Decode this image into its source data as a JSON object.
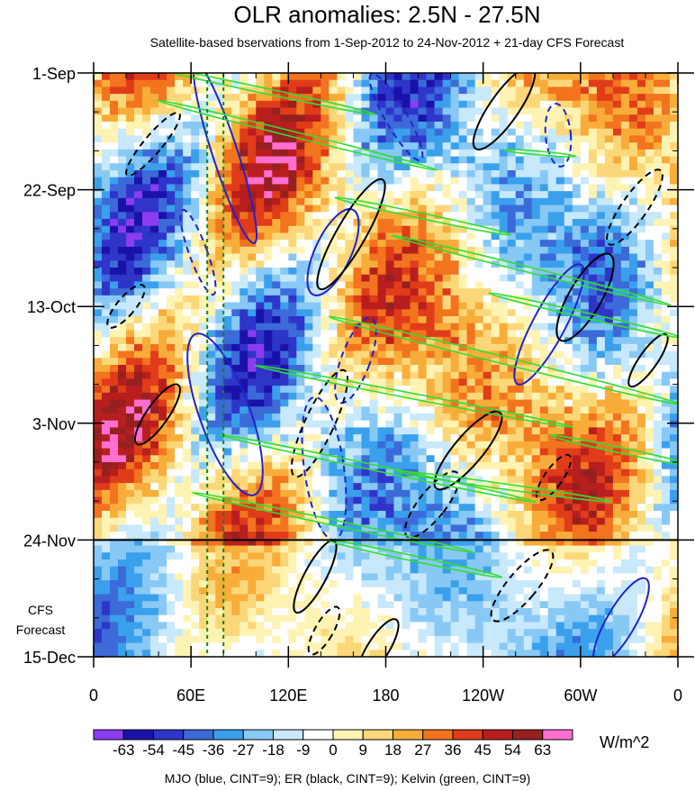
{
  "chart_data": {
    "type": "heatmap",
    "title": "OLR anomalies: 2.5N - 27.5N",
    "subtitle": "Satellite-based bservations from 1-Sep-2012 to 24-Nov-2012 + 21-day CFS Forecast",
    "x_ticks": [
      "0",
      "60E",
      "120E",
      "180",
      "120W",
      "60W",
      "0"
    ],
    "x_tick_longitudes": [
      0,
      60,
      120,
      180,
      240,
      300,
      360
    ],
    "y_ticks": [
      "1-Sep",
      "22-Sep",
      "13-Oct",
      "3-Nov",
      "24-Nov",
      "15-Dec"
    ],
    "y_tick_days": [
      0,
      21,
      42,
      63,
      84,
      105
    ],
    "observation_end_label": "24-Nov",
    "forecast_label": "CFS Forecast",
    "colorbar": {
      "levels": [
        "-63",
        "-54",
        "-45",
        "-36",
        "-27",
        "-18",
        "-9",
        "0",
        "9",
        "18",
        "27",
        "36",
        "45",
        "54",
        "63"
      ],
      "colors": [
        "#8c3cf0",
        "#1a12a8",
        "#2f35c9",
        "#3c6ad8",
        "#3aa0ec",
        "#88c8f5",
        "#c8e8fb",
        "#ffffff",
        "#fff3b3",
        "#fcd77a",
        "#f8ad3a",
        "#f2741e",
        "#e03c1a",
        "#b81e1e",
        "#962020",
        "#ff6fd0"
      ],
      "unit": "W/m^2"
    },
    "contour_legend": "MJO (blue, CINT=9); ER (black, CINT=9); Kelvin (green, CINT=9)",
    "series_colors": {
      "MJO": "#1f24c8",
      "ER": "#000000",
      "Kelvin": "#33dd33"
    },
    "reference_longitudes": [
      70,
      80
    ],
    "reference_line_color": "#118811"
  }
}
